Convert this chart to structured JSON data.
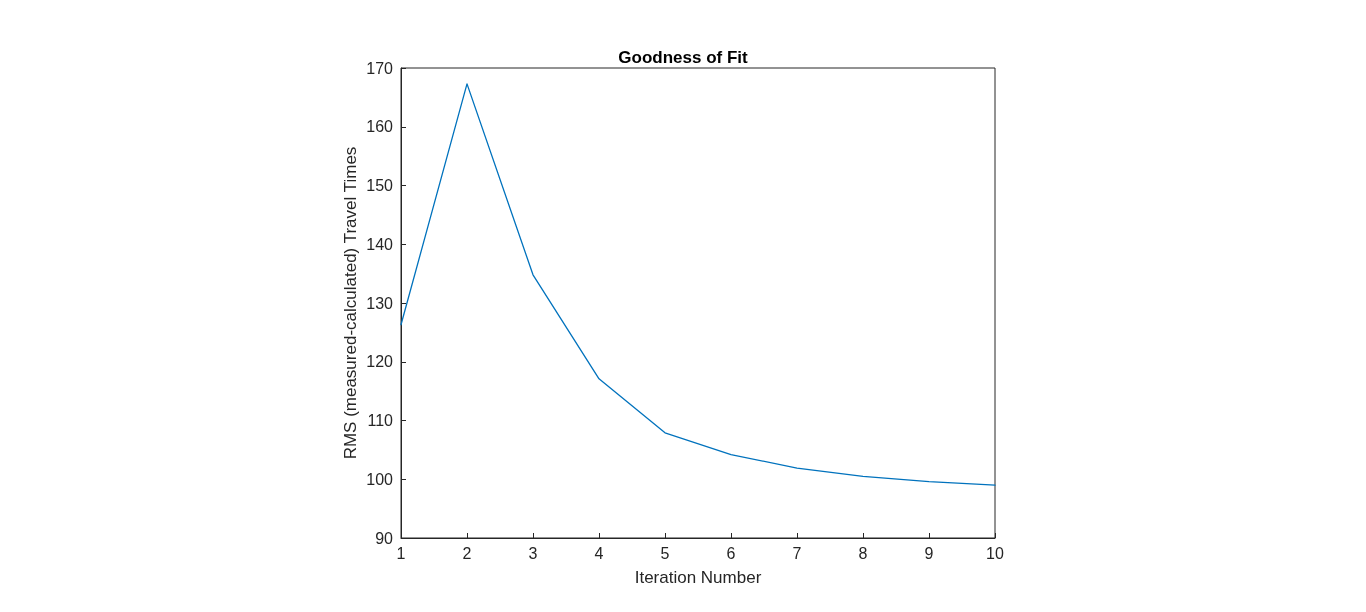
{
  "chart_data": {
    "type": "line",
    "title": "Goodness of Fit",
    "xlabel": "Iteration Number",
    "ylabel": "RMS (measured-calculated) Travel Times",
    "x": [
      1,
      2,
      3,
      4,
      5,
      6,
      7,
      8,
      9,
      10
    ],
    "series": [
      {
        "color": "#0072bd",
        "values": [
          126.3,
          167.3,
          134.8,
          117.1,
          107.9,
          104.2,
          101.9,
          100.5,
          99.6,
          99
        ]
      }
    ],
    "xlim": [
      1,
      10
    ],
    "xticks": [
      1,
      2,
      3,
      4,
      5,
      6,
      7,
      8,
      9,
      10
    ],
    "ylim": [
      90,
      170
    ],
    "yticks": [
      90,
      100,
      110,
      120,
      130,
      140,
      150,
      160,
      170
    ],
    "marker": "none",
    "line_style": "solid"
  }
}
